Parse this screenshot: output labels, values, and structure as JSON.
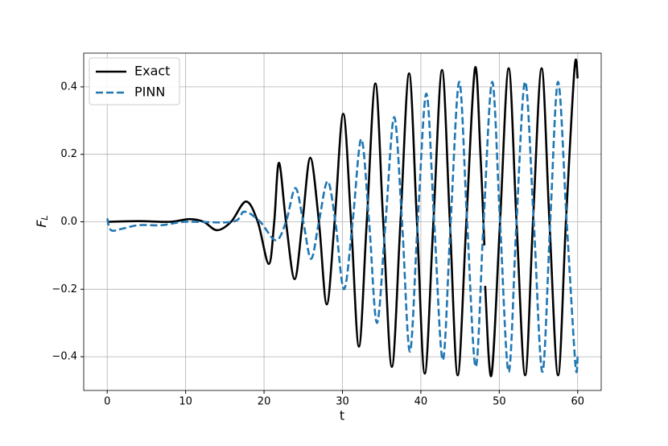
{
  "chart_data": {
    "type": "line",
    "x_label": "t",
    "y_label": {
      "main": "F",
      "subscript": "L"
    },
    "xlim": [
      -3,
      63
    ],
    "xticks": [
      0,
      10,
      20,
      30,
      40,
      50,
      60
    ],
    "ylim": [
      -0.5,
      0.5
    ],
    "yticks": [
      {
        "value": -0.4,
        "label": "−0.4"
      },
      {
        "value": -0.2,
        "label": "−0.2"
      },
      {
        "value": 0,
        "label": "0.0"
      },
      {
        "value": 0.2,
        "label": "0.2"
      },
      {
        "value": 0.4,
        "label": "0.4"
      }
    ],
    "grid": true,
    "legend": "upper left",
    "series": [
      {
        "name": "Exact",
        "color": "#000000",
        "linestyle": "solid",
        "x": [
          0,
          4,
          8,
          10.5,
          12.3,
          14,
          15.8,
          17.7,
          19.2,
          20.6,
          21.3,
          21.9,
          22.8,
          23.9,
          24.9,
          25.9,
          27,
          28,
          29,
          30.1,
          31.1,
          32.1,
          33.1,
          34.2,
          35.2,
          36.3,
          37.4,
          38.5,
          39.5,
          40.5,
          41.6,
          42.7,
          43.7,
          44.7,
          45.8,
          46.9,
          47.6,
          48.1,
          48.15,
          48.2,
          49,
          50.1,
          51.2,
          52.2,
          53.3,
          54.3,
          55.4,
          56.4,
          57.5,
          58.5,
          59.6,
          60
        ],
        "values": [
          0,
          0.002,
          0,
          0.008,
          0,
          -0.025,
          0,
          0.06,
          0,
          -0.125,
          0,
          0.175,
          0,
          -0.17,
          0,
          0.19,
          0,
          -0.245,
          0,
          0.32,
          0,
          -0.37,
          0,
          0.41,
          0,
          -0.43,
          0,
          0.44,
          0,
          -0.45,
          0,
          0.45,
          0,
          -0.455,
          0,
          0.455,
          0.2,
          -0.07,
          null,
          -0.19,
          -0.455,
          0,
          0.455,
          0,
          -0.455,
          0,
          0.455,
          0,
          -0.455,
          0,
          0.455,
          0.425
        ]
      },
      {
        "name": "PINN",
        "color": "#1f77b4",
        "linestyle": "dashed",
        "x": [
          0,
          0.5,
          2,
          4,
          7,
          10,
          16,
          17.5,
          19.5,
          21.5,
          22.8,
          24,
          25,
          26,
          27,
          28.1,
          29.1,
          30.2,
          31.3,
          32.4,
          33.4,
          34.4,
          35.5,
          36.6,
          37.6,
          38.6,
          39.6,
          40.7,
          41.7,
          42.8,
          43.8,
          44.9,
          45.9,
          47,
          48,
          49.1,
          50.1,
          51.2,
          52.2,
          53.3,
          54.4,
          55.5,
          56.5,
          57.5,
          58.6,
          59.7,
          60
        ],
        "values": [
          0.01,
          -0.025,
          -0.02,
          -0.01,
          -0.01,
          0,
          0,
          0.03,
          0,
          -0.055,
          0,
          0.1,
          0,
          -0.11,
          0,
          0.12,
          0,
          -0.2,
          0,
          0.245,
          0,
          -0.3,
          0,
          0.31,
          0,
          -0.385,
          0,
          0.38,
          0,
          -0.41,
          0,
          0.415,
          0,
          -0.43,
          0,
          0.415,
          0,
          -0.445,
          0,
          0.415,
          0,
          -0.445,
          0,
          0.415,
          0,
          -0.42,
          -0.4
        ]
      }
    ]
  }
}
